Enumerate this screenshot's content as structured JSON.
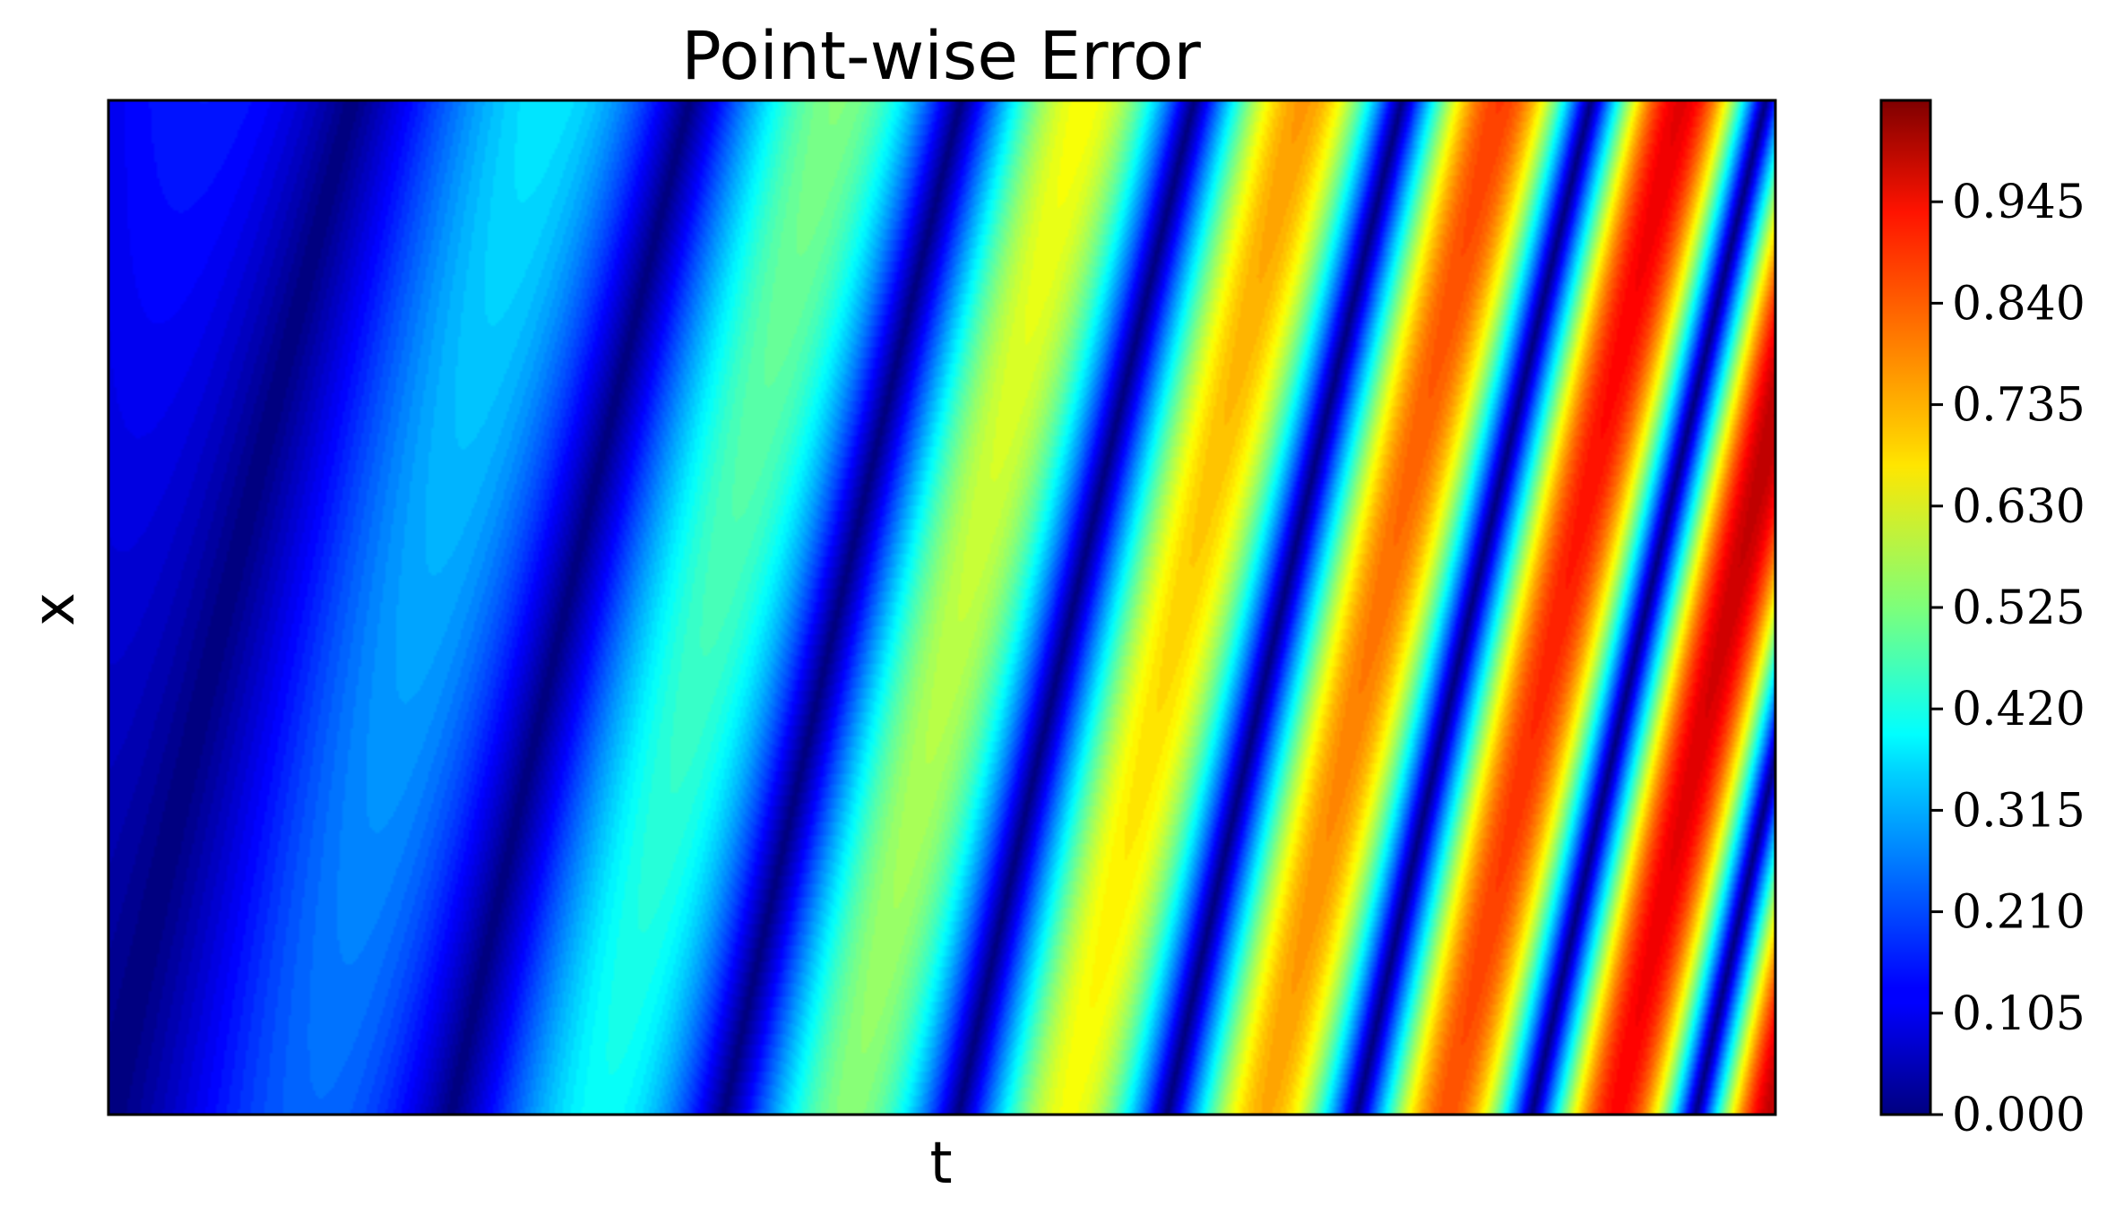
{
  "chart_data": {
    "type": "heatmap",
    "title": "Point-wise Error",
    "xlabel": "t",
    "ylabel": "x",
    "x_ticks": [],
    "y_ticks": [],
    "colormap": "jet",
    "colorbar": {
      "min": 0.0,
      "max": 1.05,
      "ticks": [
        "0.000",
        "0.105",
        "0.210",
        "0.315",
        "0.420",
        "0.525",
        "0.630",
        "0.735",
        "0.840",
        "0.945"
      ],
      "tick_values": [
        0.0,
        0.105,
        0.21,
        0.315,
        0.42,
        0.525,
        0.63,
        0.735,
        0.84,
        0.945
      ]
    },
    "pattern": {
      "description_of_field": "diagonal traveling-wave stripes; amplitude grows with t, stripes tilt so that phase shifts with x",
      "band_count_approx": 18
    }
  }
}
